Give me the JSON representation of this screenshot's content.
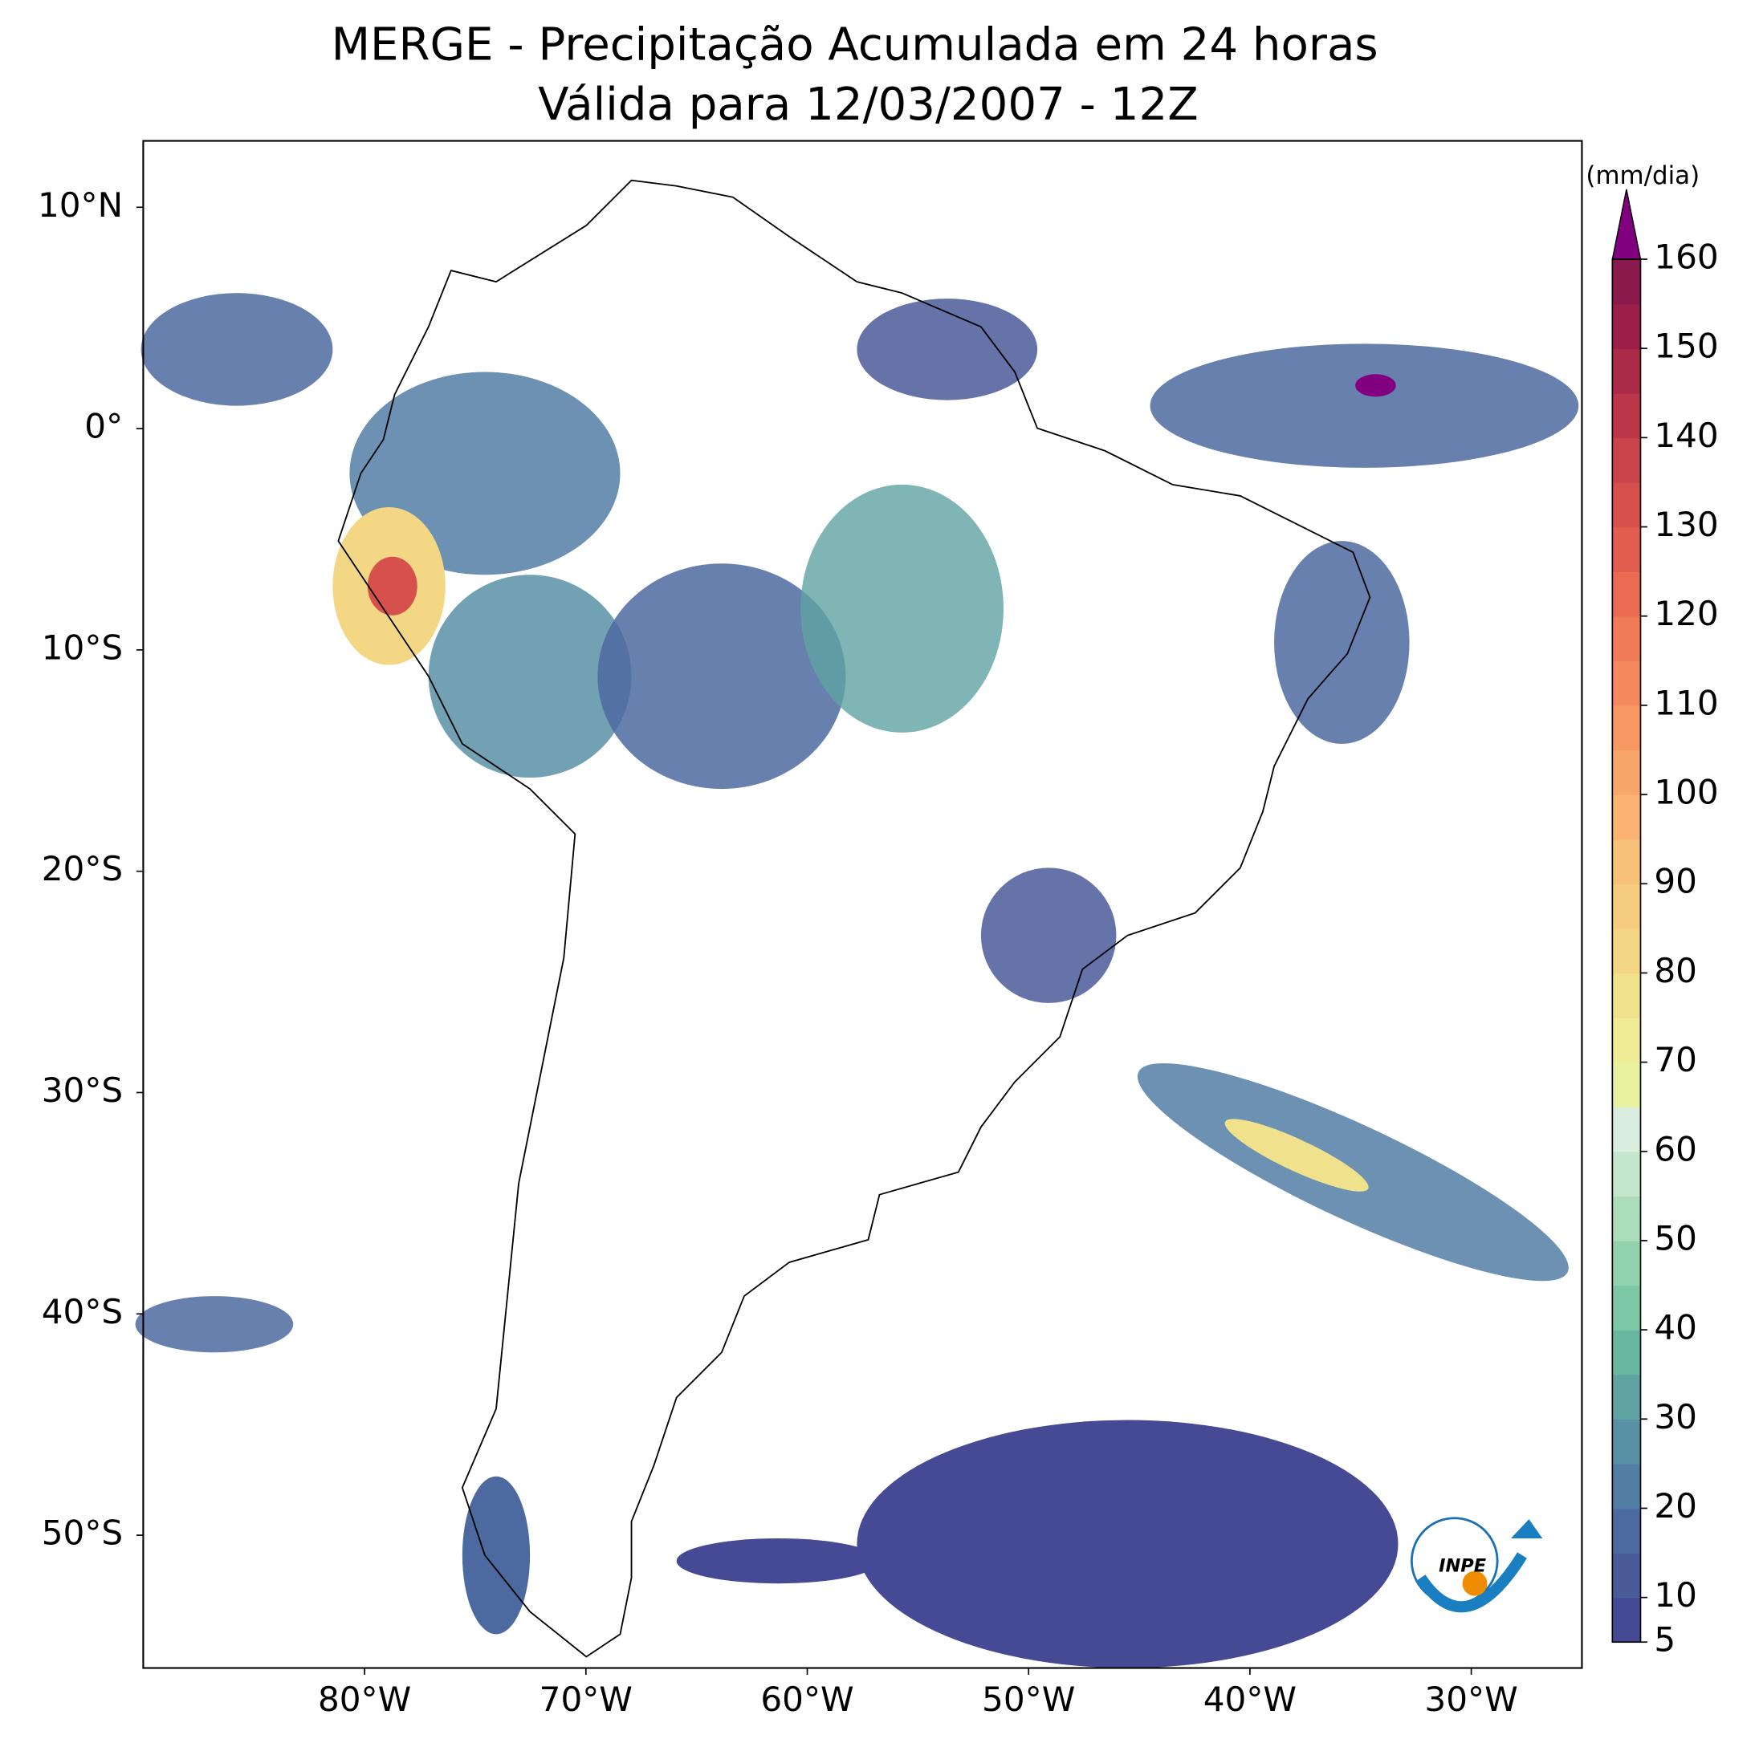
{
  "chart_data": {
    "type": "map",
    "title": "MERGE - Precipitação Acumulada em 24 horas",
    "subtitle": "Válida para 12/03/2007 - 12Z",
    "xlim": [
      -90,
      -25
    ],
    "ylim": [
      -56,
      13
    ],
    "xticks": [
      {
        "value": -80,
        "label": "80°W"
      },
      {
        "value": -70,
        "label": "70°W"
      },
      {
        "value": -60,
        "label": "60°W"
      },
      {
        "value": -50,
        "label": "50°W"
      },
      {
        "value": -40,
        "label": "40°W"
      },
      {
        "value": -30,
        "label": "30°W"
      }
    ],
    "yticks": [
      {
        "value": 10,
        "label": "10°N"
      },
      {
        "value": 0,
        "label": "0°"
      },
      {
        "value": -10,
        "label": "10°S"
      },
      {
        "value": -20,
        "label": "20°S"
      },
      {
        "value": -30,
        "label": "30°S"
      },
      {
        "value": -40,
        "label": "40°S"
      },
      {
        "value": -50,
        "label": "50°S"
      }
    ],
    "colorbar": {
      "label": "(mm/dia)",
      "lim": [
        5,
        160
      ],
      "ticks": [
        5,
        10,
        20,
        30,
        40,
        50,
        60,
        70,
        80,
        90,
        100,
        110,
        120,
        130,
        140,
        150,
        160
      ],
      "bounds": [
        5,
        10,
        15,
        20,
        25,
        30,
        35,
        40,
        45,
        50,
        55,
        60,
        65,
        70,
        75,
        80,
        85,
        90,
        95,
        100,
        105,
        110,
        115,
        120,
        125,
        130,
        135,
        140,
        145,
        150,
        155,
        160
      ],
      "colors": [
        "#464a94",
        "#4a5b9a",
        "#4d6aa0",
        "#527ea4",
        "#5890a5",
        "#5fa3a3",
        "#6ab7a0",
        "#7dc8a4",
        "#93d2ae",
        "#abdcbc",
        "#c4e6cd",
        "#dbedde",
        "#e9f29e",
        "#eeec95",
        "#f0e28c",
        "#f3d784",
        "#f6cc7e",
        "#f8c17a",
        "#f9b474",
        "#f9a66d",
        "#f89865",
        "#f5895e",
        "#f17a58",
        "#eb6b52",
        "#e15d4f",
        "#d6504c",
        "#c9434a",
        "#bb3649",
        "#ab2a48",
        "#9b1f48",
        "#8a1a4b"
      ],
      "extend_color": "#800080"
    },
    "logo": {
      "text": "INPE"
    }
  }
}
